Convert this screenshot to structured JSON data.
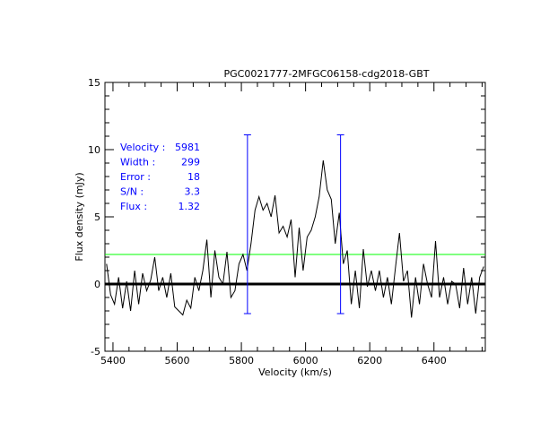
{
  "chart_data": {
    "type": "line",
    "title": "PGC0021777-2MFGC06158-cdg2018-GBT",
    "xlabel": "Velocity (km/s)",
    "ylabel": "Flux density (mJy)",
    "xlim": [
      5375,
      6560
    ],
    "ylim": [
      -5,
      15
    ],
    "xticks": [
      5400,
      5600,
      5800,
      6000,
      6200,
      6400
    ],
    "yticks": [
      -5,
      0,
      5,
      10,
      15
    ],
    "x_minor_step": 50,
    "y_minor_step": 1,
    "grid": false,
    "spectrum": {
      "x_start": 5380,
      "x_step": 12.5,
      "values": [
        1.5,
        -0.8,
        -1.5,
        0.5,
        -1.8,
        0.2,
        -2.0,
        1.0,
        -1.5,
        0.8,
        -0.5,
        0.3,
        2.0,
        -0.5,
        0.5,
        -1.0,
        0.8,
        -1.7,
        -2.0,
        -2.3,
        -1.2,
        -1.8,
        0.5,
        -0.5,
        1.0,
        3.3,
        -1.0,
        2.5,
        0.5,
        0.0,
        2.4,
        -1.0,
        -0.5,
        1.5,
        2.2,
        1.0,
        3.0,
        5.5,
        6.5,
        5.5,
        6.0,
        5.0,
        6.6,
        3.8,
        4.3,
        3.5,
        4.8,
        0.5,
        4.2,
        1.0,
        3.5,
        4.0,
        5.0,
        6.5,
        9.2,
        7.0,
        6.3,
        3.0,
        5.3,
        1.5,
        2.5,
        -1.5,
        1.0,
        -1.8,
        2.6,
        -0.2,
        1.0,
        -0.5,
        1.0,
        -1.0,
        0.5,
        -1.5,
        1.2,
        3.8,
        0.2,
        1.0,
        -2.5,
        0.5,
        -1.5,
        1.5,
        0.0,
        -1.0,
        3.2,
        -1.0,
        0.5,
        -1.5,
        0.2,
        0.0,
        -1.8,
        1.2,
        -1.5,
        0.5,
        -2.2,
        0.5,
        1.3
      ],
      "color": "#000000"
    },
    "baseline": {
      "y": 0,
      "color": "#000000"
    },
    "threshold_line": {
      "y": 2.2,
      "color": "#00ff00"
    },
    "window_markers": {
      "x": [
        5819,
        6109
      ],
      "y_range": [
        -2.2,
        11.1
      ],
      "color": "#0000ff"
    },
    "annotations": [
      {
        "label": "Velocity :",
        "value": "5981"
      },
      {
        "label": "Width :",
        "value": "299"
      },
      {
        "label": "Error :",
        "value": "18"
      },
      {
        "label": "S/N :",
        "value": "3.3"
      },
      {
        "label": "Flux :",
        "value": "1.32"
      }
    ],
    "annotation_color": "#0000ff"
  }
}
